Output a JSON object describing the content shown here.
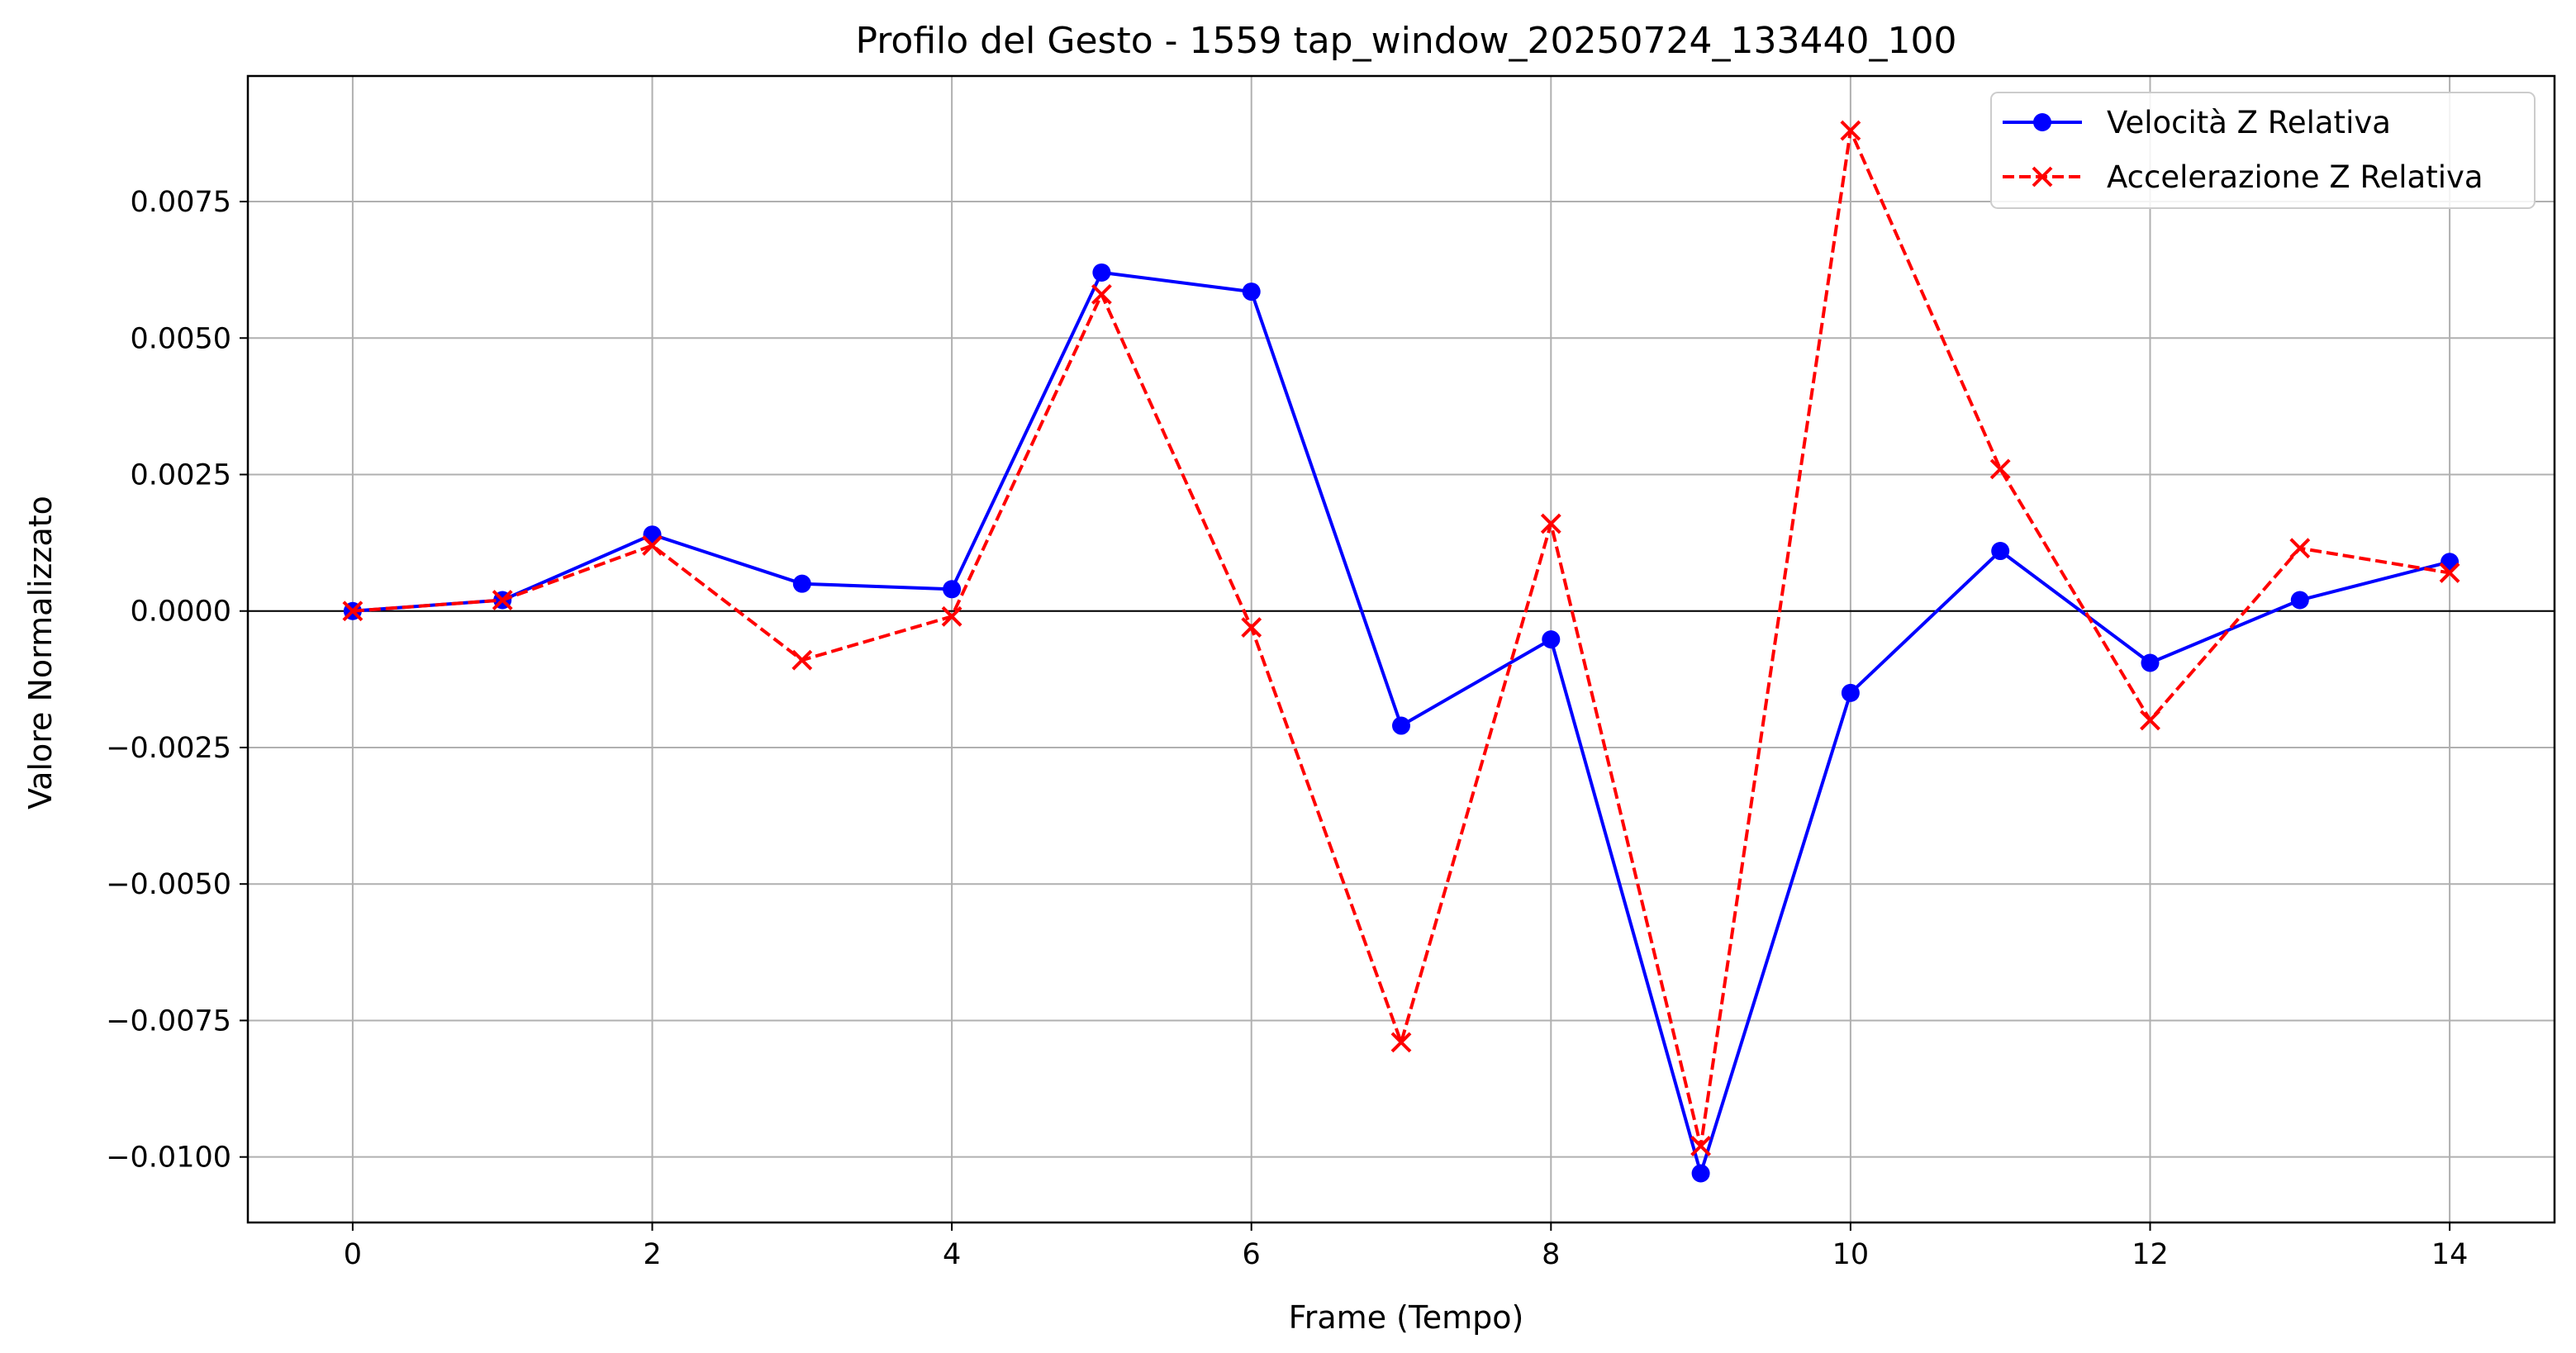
{
  "chart_data": {
    "type": "line",
    "title": "Profilo del Gesto - 1559 tap_window_20250724_133440_100",
    "xlabel": "Frame (Tempo)",
    "ylabel": "Valore Normalizzato",
    "x": [
      0,
      1,
      2,
      3,
      4,
      5,
      6,
      7,
      8,
      9,
      10,
      11,
      12,
      13,
      14
    ],
    "xlim": [
      -0.7,
      14.7
    ],
    "ylim": [
      -0.0112,
      0.0098
    ],
    "x_ticks": [
      0,
      2,
      4,
      6,
      8,
      10,
      12,
      14
    ],
    "x_tick_labels": [
      "0",
      "2",
      "4",
      "6",
      "8",
      "10",
      "12",
      "14"
    ],
    "y_ticks": [
      -0.01,
      -0.0075,
      -0.005,
      -0.0025,
      0,
      0.0025,
      0.005,
      0.0075
    ],
    "y_tick_labels": [
      "−0.0100",
      "−0.0075",
      "−0.0050",
      "−0.0025",
      "0.0000",
      "0.0025",
      "0.0050",
      "0.0075"
    ],
    "grid": true,
    "zero_line": true,
    "legend_position": "top-right",
    "series": [
      {
        "name": "Velocità Z Relativa",
        "color": "#0000ff",
        "line_style": "solid",
        "marker": "circle",
        "values": [
          0.0,
          0.0002,
          0.0014,
          0.0005,
          0.0004,
          0.0062,
          0.00585,
          -0.0021,
          -0.00052,
          -0.0103,
          -0.0015,
          0.0011,
          -0.00095,
          0.0002,
          0.0009
        ]
      },
      {
        "name": "Accelerazione Z Relativa",
        "color": "#ff0000",
        "line_style": "dashed",
        "marker": "x",
        "values": [
          0.0,
          0.0002,
          0.0012,
          -0.0009,
          -0.0001,
          0.0058,
          -0.0003,
          -0.0079,
          0.0016,
          -0.0098,
          0.0088,
          0.0026,
          -0.002,
          0.00115,
          0.0007
        ]
      }
    ]
  }
}
